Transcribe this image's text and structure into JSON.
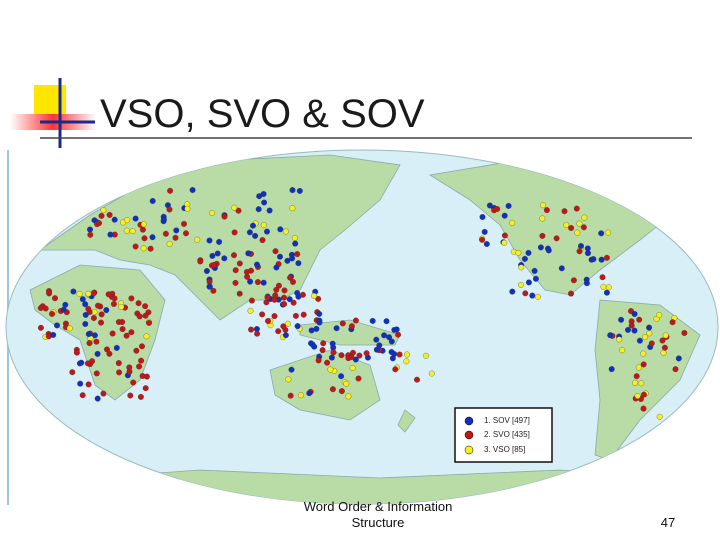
{
  "title": "VSO, SVO & SOV",
  "legend": [
    "1. SOV [497]",
    "2. SVO [435]",
    "3. VSO [85]"
  ],
  "footer": {
    "text_lines": [
      "Word Order & Information",
      "Structure"
    ],
    "page_number": "47"
  }
}
